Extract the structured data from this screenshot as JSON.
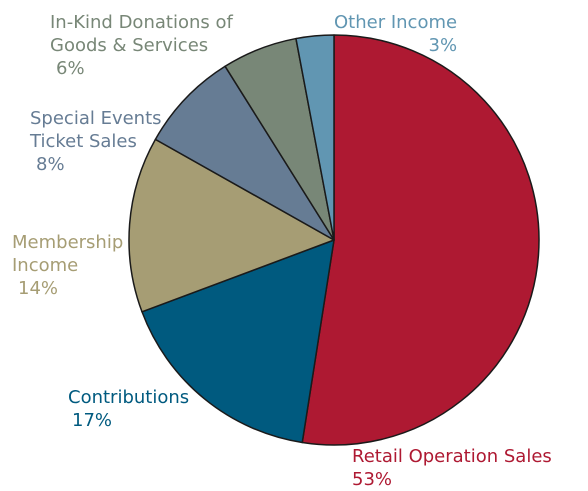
{
  "chart_data": {
    "type": "pie",
    "slices": [
      {
        "label": [
          "Retail Operation Sales"
        ],
        "value": 53,
        "value_label": "53%",
        "color": "#AE1932"
      },
      {
        "label": [
          "Contributions"
        ],
        "value": 17,
        "value_label": "17%",
        "color": "#005A7F"
      },
      {
        "label": [
          "Membership",
          "Income"
        ],
        "value": 14,
        "value_label": "14%",
        "color": "#A69D74"
      },
      {
        "label": [
          "Special Events",
          "Ticket Sales"
        ],
        "value": 8,
        "value_label": "8%",
        "color": "#667C94"
      },
      {
        "label": [
          "In-Kind Donations of",
          "Goods & Services"
        ],
        "value": 6,
        "value_label": "6%",
        "color": "#788777"
      },
      {
        "label": [
          "Other Income"
        ],
        "value": 3,
        "value_label": "3%",
        "color": "#6196B2"
      }
    ],
    "label_colors": [
      "#AE1932",
      "#005A7F",
      "#A69D74",
      "#667C94",
      "#788777",
      "#6196B2"
    ]
  }
}
